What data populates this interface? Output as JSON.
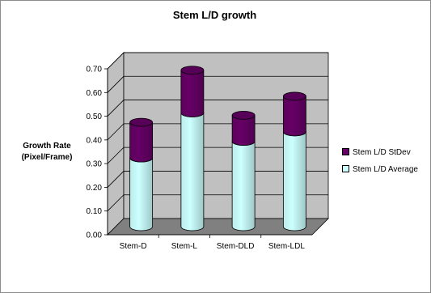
{
  "chart_data": {
    "type": "bar",
    "stacked": true,
    "title": "Stem L/D growth",
    "ylabel": "Growth Rate (Pixel/Frame)",
    "xlabel": "",
    "ylim": [
      0,
      0.7
    ],
    "yticks": [
      "0.00",
      "0.10",
      "0.20",
      "0.30",
      "0.40",
      "0.50",
      "0.60",
      "0.70"
    ],
    "categories": [
      "Stem-D",
      "Stem-L",
      "Stem-DLD",
      "Stem-LDL"
    ],
    "series": [
      {
        "name": "Stem L/D Average",
        "values": [
          0.29,
          0.48,
          0.36,
          0.4
        ],
        "color": "#ccffff"
      },
      {
        "name": "Stem L/D StDev",
        "values": [
          0.15,
          0.18,
          0.11,
          0.15
        ],
        "color": "#660066"
      }
    ],
    "legend_order": [
      1,
      0
    ],
    "legend_position": "right",
    "grid": true,
    "wall_color": "#c0c0c0",
    "floor_color": "#808080"
  }
}
